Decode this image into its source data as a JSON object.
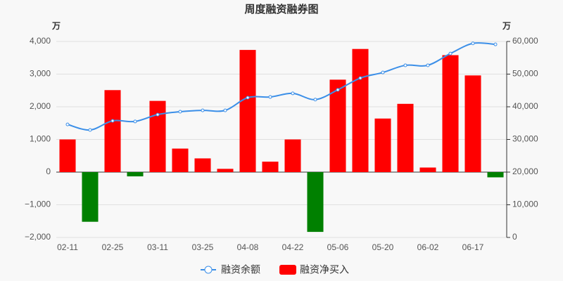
{
  "chart_data": {
    "type": "bar_line",
    "title": "周度融资融券图",
    "y_unit": "万",
    "y2_unit": "万",
    "categories": [
      "02-11",
      null,
      "02-25",
      null,
      "03-11",
      null,
      "03-25",
      null,
      "04-08",
      null,
      "04-22",
      null,
      "05-06",
      null,
      "05-20",
      null,
      "06-02",
      null,
      "06-17",
      null
    ],
    "series": [
      {
        "name": "融资余额",
        "type": "line",
        "axis": "y2",
        "color": "#3b8fe8",
        "smooth": true,
        "values": [
          34600,
          32900,
          35700,
          35500,
          37600,
          38500,
          38900,
          38900,
          42800,
          43000,
          44100,
          42200,
          45200,
          48800,
          50500,
          52700,
          52700,
          56300,
          59400,
          59100
        ]
      },
      {
        "name": "融资净买入",
        "type": "bar",
        "color": "#ff0000",
        "negative_color": "#008000",
        "values": [
          1000,
          -1520,
          2510,
          -130,
          2180,
          720,
          420,
          100,
          3740,
          320,
          1000,
          -1830,
          2830,
          3770,
          1640,
          2090,
          140,
          3580,
          2960,
          -160
        ]
      }
    ],
    "ylim": [
      -2000,
      4000
    ],
    "yticks": [
      {
        "value": -2000,
        "label": "−2,000"
      },
      {
        "value": -1000,
        "label": "−1,000"
      },
      0,
      {
        "value": 1000,
        "label": "1,000"
      },
      {
        "value": 2000,
        "label": "2,000"
      },
      {
        "value": 3000,
        "label": "3,000"
      },
      {
        "value": 4000,
        "label": "4,000"
      }
    ],
    "y2lim": [
      0,
      60000
    ],
    "y2ticks": [
      0,
      {
        "value": 10000,
        "label": "10,000"
      },
      {
        "value": 20000,
        "label": "20,000"
      },
      {
        "value": 30000,
        "label": "30,000"
      },
      {
        "value": 40000,
        "label": "40,000"
      },
      {
        "value": 50000,
        "label": "50,000"
      },
      {
        "value": 60000,
        "label": "60,000"
      }
    ],
    "grid": true
  }
}
